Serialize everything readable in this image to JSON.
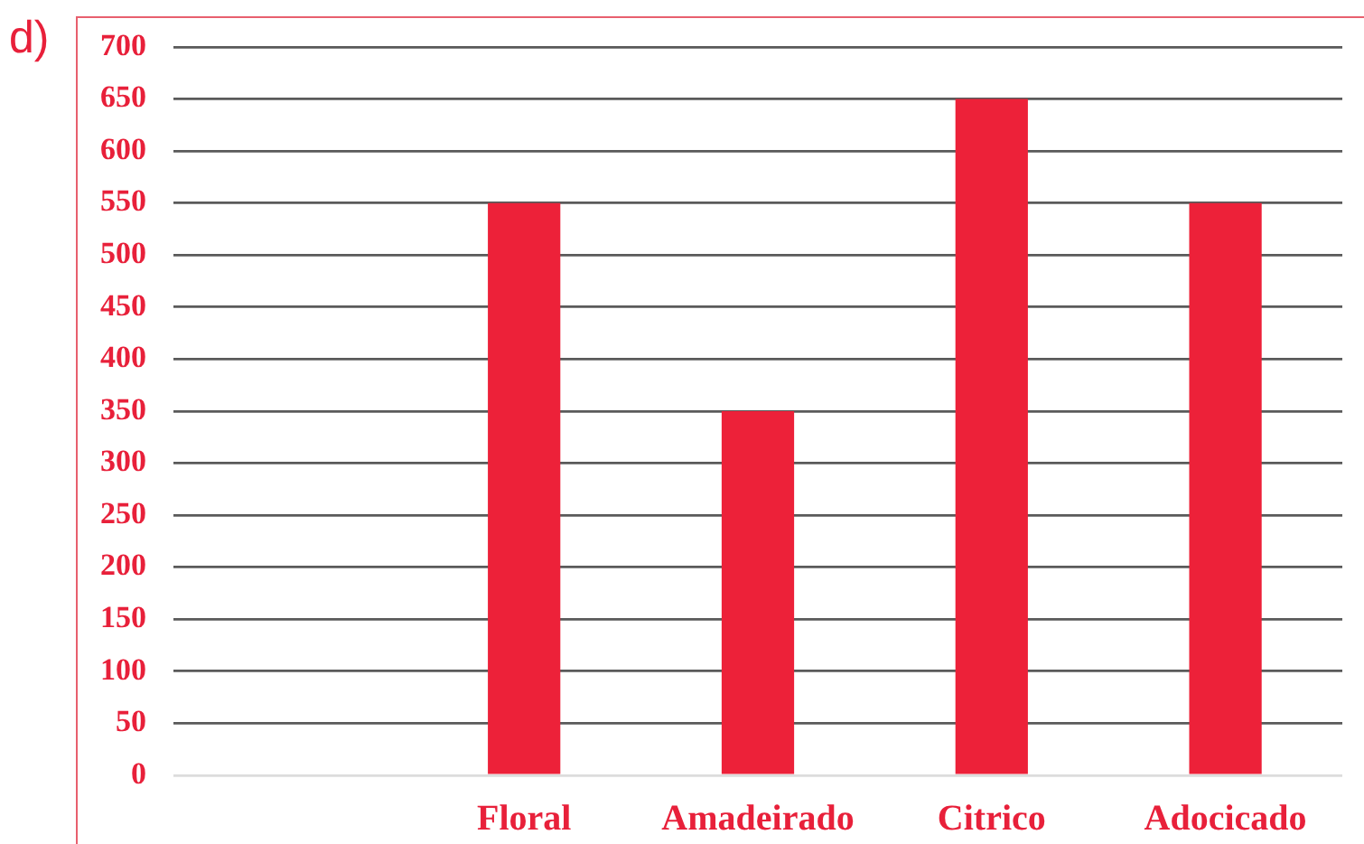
{
  "chart_data": {
    "type": "bar",
    "categories": [
      null,
      "Floral",
      "Amadeirado",
      "Citrico",
      "Adocicado"
    ],
    "values": [
      null,
      550,
      350,
      650,
      550
    ],
    "color": "#ed2139",
    "ylim": [
      0,
      700
    ],
    "yticks": [
      0,
      50,
      100,
      150,
      200,
      250,
      300,
      350,
      400,
      450,
      500,
      550,
      600,
      650,
      700
    ],
    "grid": "y",
    "annotations": [
      "d)"
    ]
  }
}
